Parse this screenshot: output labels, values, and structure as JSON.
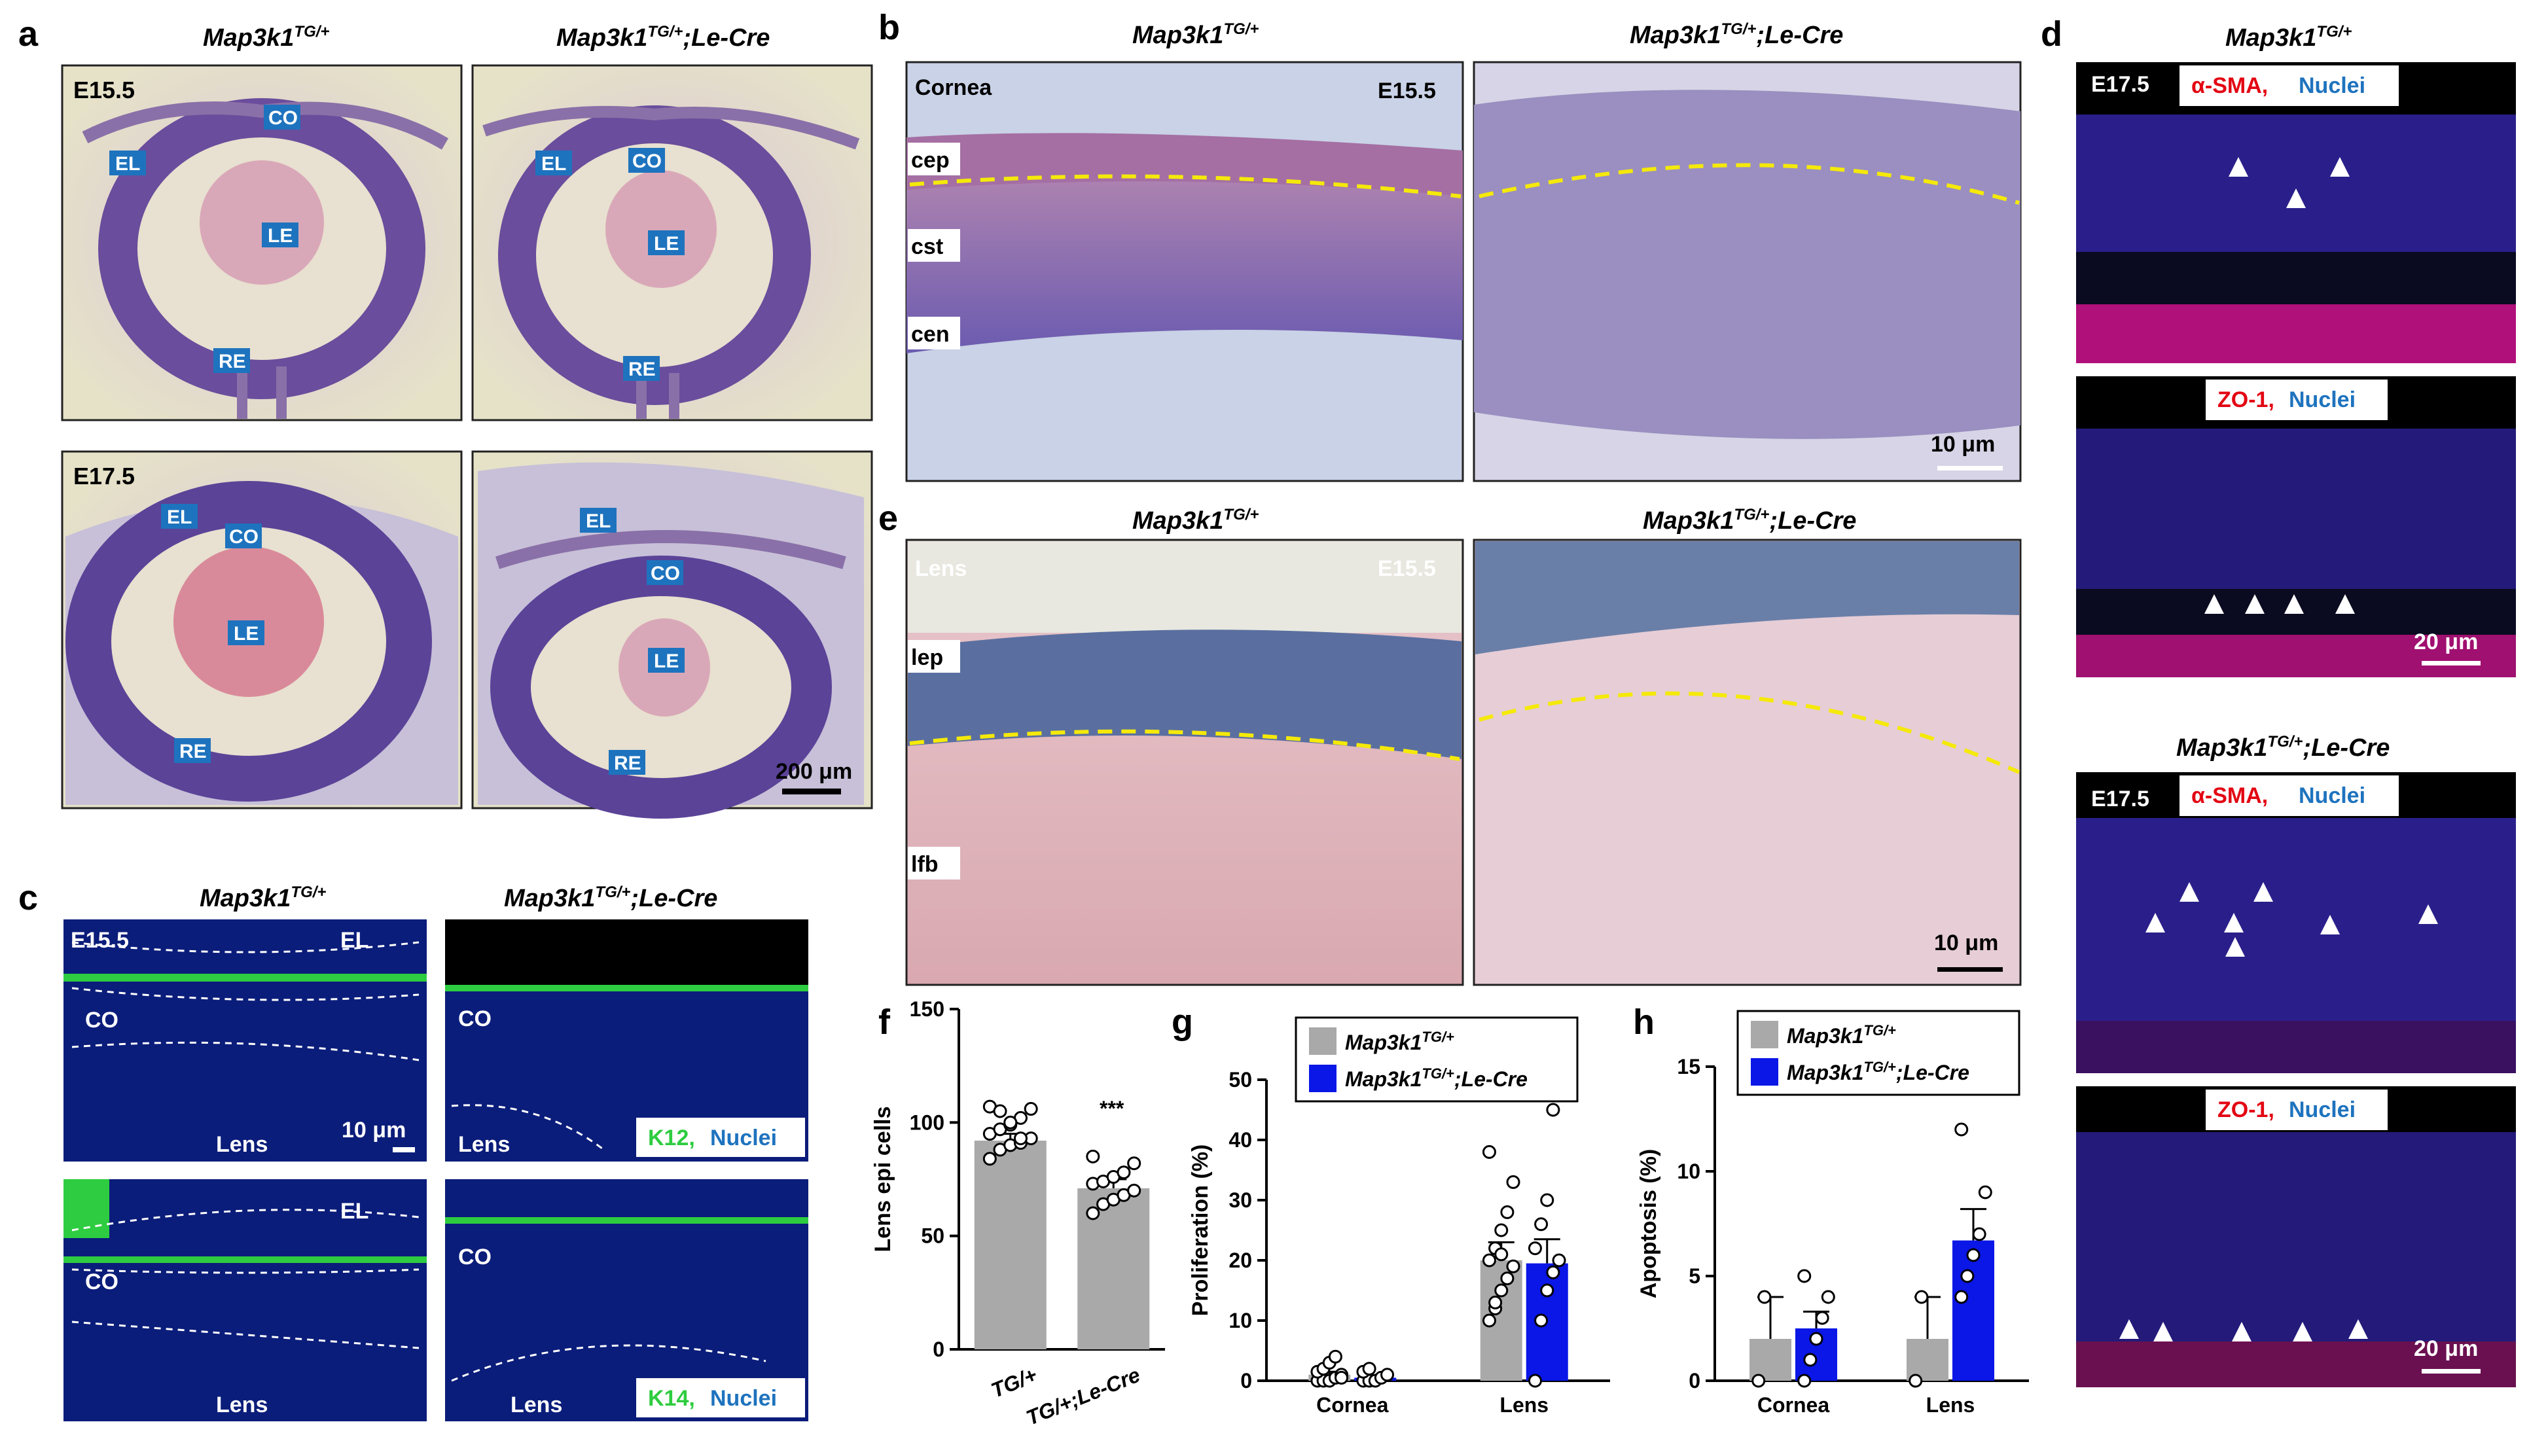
{
  "panels": {
    "a": {
      "letter": "a",
      "genotypes": {
        "wt": "Map3k1",
        "wt_sup": "TG/+",
        "mut": "Map3k1",
        "mut_sup": "TG/+",
        "mut_suffix": ";Le-Cre"
      },
      "stage_top": "E15.5",
      "stage_bottom": "E17.5",
      "labels": {
        "co": "CO",
        "el": "EL",
        "le": "LE",
        "re": "RE"
      },
      "scalebar": "200 μm"
    },
    "b": {
      "letter": "b",
      "genotypes": {
        "wt": "Map3k1",
        "wt_sup": "TG/+",
        "mut": "Map3k1",
        "mut_sup": "TG/+",
        "mut_suffix": ";Le-Cre"
      },
      "tissue": "Cornea",
      "stage": "E15.5",
      "layers": [
        "cep",
        "cst",
        "cen"
      ],
      "scalebar": "10 μm"
    },
    "c": {
      "letter": "c",
      "genotypes": {
        "wt": "Map3k1",
        "wt_sup": "TG/+",
        "mut": "Map3k1",
        "mut_sup": "TG/+",
        "mut_suffix": ";Le-Cre"
      },
      "stage": "E15.5",
      "labels": {
        "el": "EL",
        "co": "CO",
        "lens": "Lens"
      },
      "stain_top_marker": "K12,",
      "stain_bottom_marker": "K14,",
      "stain_nuclei": "Nuclei",
      "scalebar": "10 μm"
    },
    "d": {
      "letter": "d",
      "genotypes": {
        "wt": "Map3k1",
        "wt_sup": "TG/+",
        "mut": "Map3k1",
        "mut_sup": "TG/+",
        "mut_suffix": ";Le-Cre"
      },
      "stage": "E17.5",
      "stain_sma": "α-SMA,",
      "stain_zo": "ZO-1,",
      "stain_nuclei": "Nuclei",
      "scalebar": "20 μm"
    },
    "e": {
      "letter": "e",
      "genotypes": {
        "wt": "Map3k1",
        "wt_sup": "TG/+",
        "mut": "Map3k1",
        "mut_sup": "TG/+",
        "mut_suffix": ";Le-Cre"
      },
      "tissue": "Lens",
      "stage": "E15.5",
      "layers": [
        "lep",
        "lfb"
      ],
      "scalebar": "10 μm"
    },
    "f": {
      "letter": "f",
      "significance": "***"
    },
    "g": {
      "letter": "g"
    },
    "h": {
      "letter": "h"
    }
  },
  "legend": {
    "wt": "Map3k1",
    "wt_sup": "TG/+",
    "mut": "Map3k1",
    "mut_sup": "TG/+",
    "mut_suffix": ";Le-Cre",
    "wt_color": "#a9a9a9",
    "mut_color": "#0a17e6"
  },
  "chart_data": [
    {
      "id": "f",
      "type": "bar",
      "ylabel": "Lens epi cells",
      "ylim": [
        0,
        150
      ],
      "yticks": [
        0,
        50,
        100,
        150
      ],
      "categories": [
        "TG/+",
        "TG/+;Le-Cre"
      ],
      "values": [
        92,
        71
      ],
      "sem": [
        3,
        4
      ],
      "colors": [
        "#a9a9a9",
        "#a9a9a9"
      ],
      "points": [
        [
          84,
          88,
          90,
          91,
          93,
          95,
          97,
          99,
          102,
          106,
          107,
          105,
          100,
          93
        ],
        [
          60,
          64,
          66,
          68,
          70,
          73,
          74,
          76,
          78,
          82,
          85
        ]
      ]
    },
    {
      "id": "g",
      "type": "bar",
      "ylabel": "Proliferation (%)",
      "ylim": [
        0,
        50
      ],
      "yticks": [
        0,
        10,
        20,
        30,
        40,
        50
      ],
      "categories": [
        "Cornea",
        "Lens"
      ],
      "series": [
        {
          "name": "Map3k1 TG/+",
          "values": [
            1,
            20
          ],
          "sem": [
            0.5,
            3
          ],
          "points": [
            [
              0,
              0,
              0,
              0.5,
              1,
              1.5,
              2,
              3,
              4,
              0.5
            ],
            [
              10,
              12,
              15,
              17,
              19,
              20,
              22,
              25,
              28,
              33,
              38,
              13,
              21
            ]
          ]
        },
        {
          "name": "Map3k1 TG/+;Le-Cre",
          "values": [
            0.5,
            19.5
          ],
          "sem": [
            0.3,
            4
          ],
          "points": [
            [
              0,
              0,
              0,
              0.5,
              1,
              1.5,
              2
            ],
            [
              0,
              10,
              15,
              18,
              20,
              22,
              26,
              30,
              45
            ]
          ]
        }
      ]
    },
    {
      "id": "h",
      "type": "bar",
      "ylabel": "Apoptosis (%)",
      "ylim": [
        0,
        15
      ],
      "yticks": [
        0,
        5,
        10,
        15
      ],
      "categories": [
        "Cornea",
        "Lens"
      ],
      "series": [
        {
          "name": "Map3k1 TG/+",
          "values": [
            2,
            2
          ],
          "sem": [
            2,
            2
          ],
          "points": [
            [
              0,
              4
            ],
            [
              0,
              4
            ]
          ]
        },
        {
          "name": "Map3k1 TG/+;Le-Cre",
          "values": [
            2.5,
            6.7
          ],
          "sem": [
            0.8,
            1.5
          ],
          "points": [
            [
              0,
              1,
              2,
              3,
              4,
              5
            ],
            [
              4,
              5,
              6,
              7,
              9,
              12
            ]
          ]
        }
      ]
    }
  ]
}
